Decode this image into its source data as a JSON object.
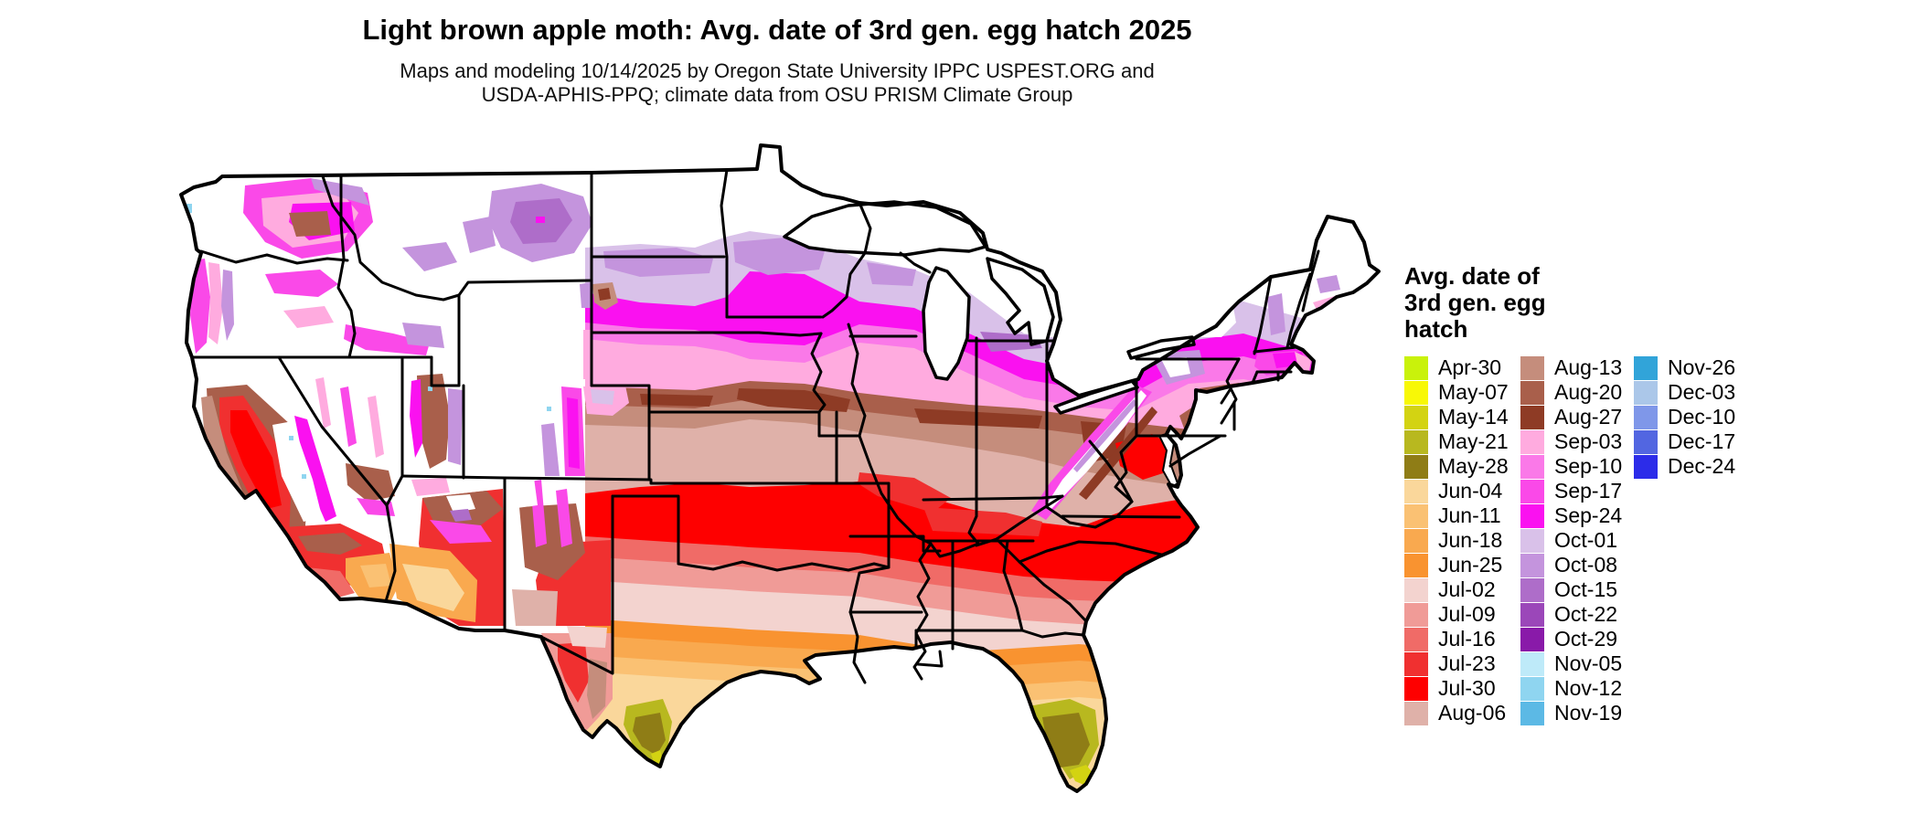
{
  "title": "Light brown apple moth: Avg. date of 3rd gen. egg hatch 2025",
  "subtitle_line1": "Maps and modeling 10/14/2025 by Oregon State University IPPC USPEST.ORG and",
  "subtitle_line2": "USDA-APHIS-PPQ; climate data from OSU PRISM Climate Group",
  "legend": {
    "title_lines": [
      "Avg. date of",
      "3rd gen. egg",
      "hatch"
    ],
    "column_sizes": [
      15,
      15,
      5
    ],
    "entries": [
      {
        "label": "Apr-30",
        "color": "#C9F20B"
      },
      {
        "label": "May-07",
        "color": "#F8F806"
      },
      {
        "label": "May-14",
        "color": "#D3D312"
      },
      {
        "label": "May-21",
        "color": "#B8B81F"
      },
      {
        "label": "May-28",
        "color": "#8F7D16"
      },
      {
        "label": "Jun-04",
        "color": "#FAD79B"
      },
      {
        "label": "Jun-11",
        "color": "#FAC173"
      },
      {
        "label": "Jun-18",
        "color": "#F9A94F"
      },
      {
        "label": "Jun-25",
        "color": "#F99330"
      },
      {
        "label": "Jul-02",
        "color": "#F3D3CF"
      },
      {
        "label": "Jul-09",
        "color": "#F09B97"
      },
      {
        "label": "Jul-16",
        "color": "#F06B67"
      },
      {
        "label": "Jul-23",
        "color": "#F03030"
      },
      {
        "label": "Jul-30",
        "color": "#FE0000"
      },
      {
        "label": "Aug-06",
        "color": "#DFB1A9"
      },
      {
        "label": "Aug-13",
        "color": "#C58D7C"
      },
      {
        "label": "Aug-20",
        "color": "#A95F4B"
      },
      {
        "label": "Aug-27",
        "color": "#8E3B25"
      },
      {
        "label": "Sep-03",
        "color": "#FFABDF"
      },
      {
        "label": "Sep-10",
        "color": "#FA79E8"
      },
      {
        "label": "Sep-17",
        "color": "#FA49E8"
      },
      {
        "label": "Sep-24",
        "color": "#FA11F0"
      },
      {
        "label": "Oct-01",
        "color": "#D9C1E9"
      },
      {
        "label": "Oct-08",
        "color": "#C494DD"
      },
      {
        "label": "Oct-15",
        "color": "#AE6DC9"
      },
      {
        "label": "Oct-22",
        "color": "#9B47B9"
      },
      {
        "label": "Oct-29",
        "color": "#891AA9"
      },
      {
        "label": "Nov-05",
        "color": "#BEEAF9"
      },
      {
        "label": "Nov-12",
        "color": "#8FD5F0"
      },
      {
        "label": "Nov-19",
        "color": "#5CB9E5"
      },
      {
        "label": "Nov-26",
        "color": "#31A4D9"
      },
      {
        "label": "Dec-03",
        "color": "#ABC7E9"
      },
      {
        "label": "Dec-10",
        "color": "#7F97E9"
      },
      {
        "label": "Dec-17",
        "color": "#5266E1"
      },
      {
        "label": "Dec-24",
        "color": "#2C2CE9"
      }
    ]
  },
  "chart_data": {
    "type": "heatmap",
    "subtype": "choropleth-us-map",
    "title": "Light brown apple moth: Avg. date of 3rd gen. egg hatch 2025",
    "legend_title": "Avg. date of 3rd gen. egg hatch",
    "categories": [
      "Apr-30",
      "May-07",
      "May-14",
      "May-21",
      "May-28",
      "Jun-04",
      "Jun-11",
      "Jun-18",
      "Jun-25",
      "Jul-02",
      "Jul-09",
      "Jul-16",
      "Jul-23",
      "Jul-30",
      "Aug-06",
      "Aug-13",
      "Aug-20",
      "Aug-27",
      "Sep-03",
      "Sep-10",
      "Sep-17",
      "Sep-24",
      "Oct-01",
      "Oct-08",
      "Oct-15",
      "Oct-22",
      "Oct-29",
      "Nov-05",
      "Nov-12",
      "Nov-19",
      "Nov-26",
      "Dec-03",
      "Dec-10",
      "Dec-17",
      "Dec-24"
    ],
    "colors": [
      "#C9F20B",
      "#F8F806",
      "#D3D312",
      "#B8B81F",
      "#8F7D16",
      "#FAD79B",
      "#FAC173",
      "#F9A94F",
      "#F99330",
      "#F3D3CF",
      "#F09B97",
      "#F06B67",
      "#F03030",
      "#FE0000",
      "#DFB1A9",
      "#C58D7C",
      "#A95F4B",
      "#8E3B25",
      "#FFABDF",
      "#FA79E8",
      "#FA49E8",
      "#FA11F0",
      "#D9C1E9",
      "#C494DD",
      "#AE6DC9",
      "#9B47B9",
      "#891AA9",
      "#BEEAF9",
      "#8FD5F0",
      "#5CB9E5",
      "#31A4D9",
      "#ABC7E9",
      "#7F97E9",
      "#5266E1",
      "#2C2CE9"
    ],
    "legend_position": "right",
    "spatial_gradient": "Earliest hatch (Apr-May, yellow-green/olive) in south Florida and south Texas; June (orange) along the Gulf Coast; July (red/pink) across the mid-South and Oklahoma/Arkansas and California Central Valley; August (browns) across the central Midwest and mid-Atlantic; September (magenta/pink) across the northern plains, Great Lakes south and New England coast; October (purples) along the northern fringe and mountain areas; white = no predicted third-generation hatch (far north and high mountain West)."
  }
}
